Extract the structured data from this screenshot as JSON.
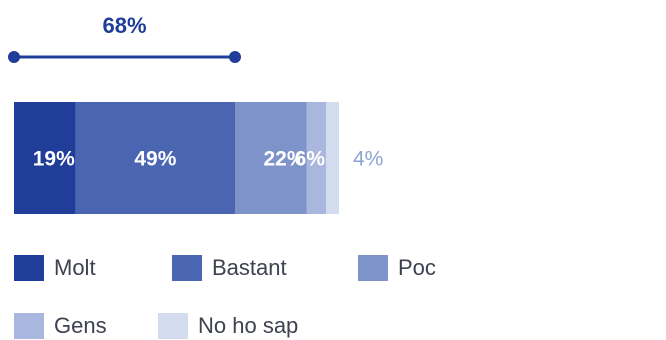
{
  "chart_data": {
    "type": "bar",
    "orientation": "horizontal-stacked-100",
    "title": "",
    "xlabel": "",
    "ylabel": "",
    "categories": [
      ""
    ],
    "series": [
      {
        "name": "Molt",
        "values": [
          19
        ],
        "label": "19%",
        "color": "#1f3d99"
      },
      {
        "name": "Bastant",
        "values": [
          49
        ],
        "label": "49%",
        "color": "#4a66b3"
      },
      {
        "name": "Poc",
        "values": [
          22
        ],
        "label": "22%",
        "color": "#7f93cb"
      },
      {
        "name": "Gens",
        "values": [
          6
        ],
        "label": "6%",
        "color": "#a9b7de"
      },
      {
        "name": "No ho sap",
        "values": [
          4
        ],
        "label": "4%",
        "color": "#d3dbee"
      }
    ],
    "bracket": {
      "label": "68%",
      "spans_series": [
        "Molt",
        "Bastant"
      ],
      "color": "#1f3d99"
    },
    "outside_label_color": "#8fa2d4",
    "legend_position": "bottom",
    "grid": false
  }
}
